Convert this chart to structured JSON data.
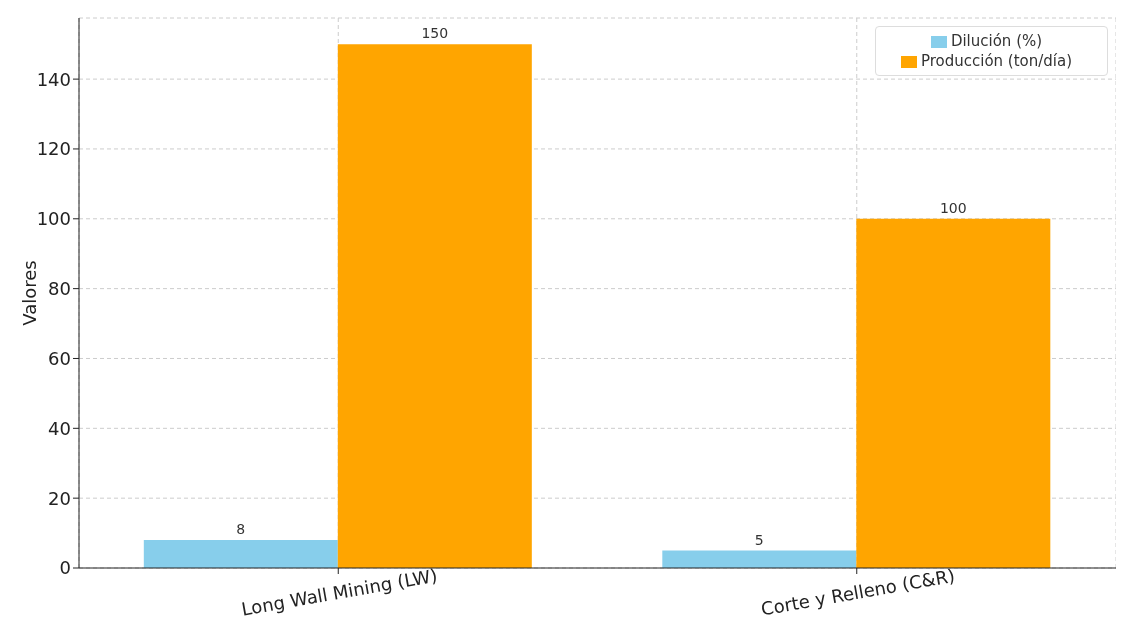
{
  "chart_data": {
    "type": "bar",
    "ylabel": "Valores",
    "categories": [
      "Long Wall Mining (LW)",
      "Corte y Relleno (C&R)"
    ],
    "series": [
      {
        "name": "Dilución (%)",
        "color": "#87ceeb",
        "values": [
          8,
          5
        ]
      },
      {
        "name": "Producción (ton/día)",
        "color": "#ffa500",
        "values": [
          150,
          100
        ]
      }
    ],
    "ylim": [
      0,
      157.5
    ],
    "yticks": [
      0,
      20,
      40,
      60,
      80,
      100,
      120,
      140
    ],
    "grid": true,
    "legend": "top right",
    "data_labels": true
  }
}
